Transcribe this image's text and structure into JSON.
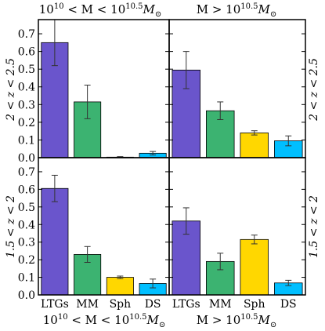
{
  "colors": {
    "LTGs": "#6a55cc",
    "MM": "#3cb371",
    "Sph": "#ffd700",
    "DS": "#00bfff"
  },
  "chart_data": [
    {
      "type": "bar",
      "categories": [
        "LTGs",
        "MM",
        "Sph",
        "DS"
      ],
      "values": [
        0.65,
        0.315,
        0.003,
        0.025
      ],
      "errors": [
        0.13,
        0.095,
        0.003,
        0.01
      ],
      "title": "10^{10} < M < 10^{10.5}M_⊙",
      "title_parts": {
        "a": "10",
        "a_sup": "10",
        "b": " < M < 10",
        "b_sup": "10.5",
        "c": "M",
        "c_sub": "⊙"
      },
      "ylabel": "2 < z < 2.5",
      "ylim": [
        0,
        0.78
      ],
      "yticks": [
        "0.0",
        "0.1",
        "0.2",
        "0.3",
        "0.4",
        "0.5",
        "0.6",
        "0.7"
      ],
      "xlabel": ""
    },
    {
      "type": "bar",
      "categories": [
        "LTGs",
        "MM",
        "Sph",
        "DS"
      ],
      "values": [
        0.495,
        0.265,
        0.14,
        0.095
      ],
      "errors": [
        0.105,
        0.05,
        0.012,
        0.028
      ],
      "title": "M > 10^{10.5}M_⊙",
      "title_parts": {
        "a": "M > 10",
        "a_sup": "10.5",
        "c": "M",
        "c_sub": "⊙"
      },
      "ylabel": "2 < z < 2.5",
      "ylim": [
        0,
        0.78
      ],
      "xlabel": ""
    },
    {
      "type": "bar",
      "categories": [
        "LTGs",
        "MM",
        "Sph",
        "DS"
      ],
      "values": [
        0.605,
        0.23,
        0.1,
        0.065
      ],
      "errors": [
        0.075,
        0.045,
        0.007,
        0.025
      ],
      "ylabel": "1.5 < z < 2",
      "ylim": [
        0,
        0.78
      ],
      "yticks": [
        "0.0",
        "0.1",
        "0.2",
        "0.3",
        "0.4",
        "0.5",
        "0.6",
        "0.7"
      ],
      "xlabel": "10^{10} < M < 10^{10.5}M_⊙",
      "xlabel_parts": {
        "a": "10",
        "a_sup": "10",
        "b": " < M < 10",
        "b_sup": "10.5",
        "c": "M",
        "c_sub": "⊙"
      }
    },
    {
      "type": "bar",
      "categories": [
        "LTGs",
        "MM",
        "Sph",
        "DS"
      ],
      "values": [
        0.42,
        0.19,
        0.315,
        0.068
      ],
      "errors": [
        0.075,
        0.047,
        0.025,
        0.015
      ],
      "ylabel": "1.5 < z < 2",
      "ylim": [
        0,
        0.78
      ],
      "xlabel": "M > 10^{10.5}M_⊙",
      "xlabel_parts": {
        "a": "M > 10",
        "a_sup": "10.5",
        "c": "M",
        "c_sub": "⊙"
      }
    }
  ]
}
